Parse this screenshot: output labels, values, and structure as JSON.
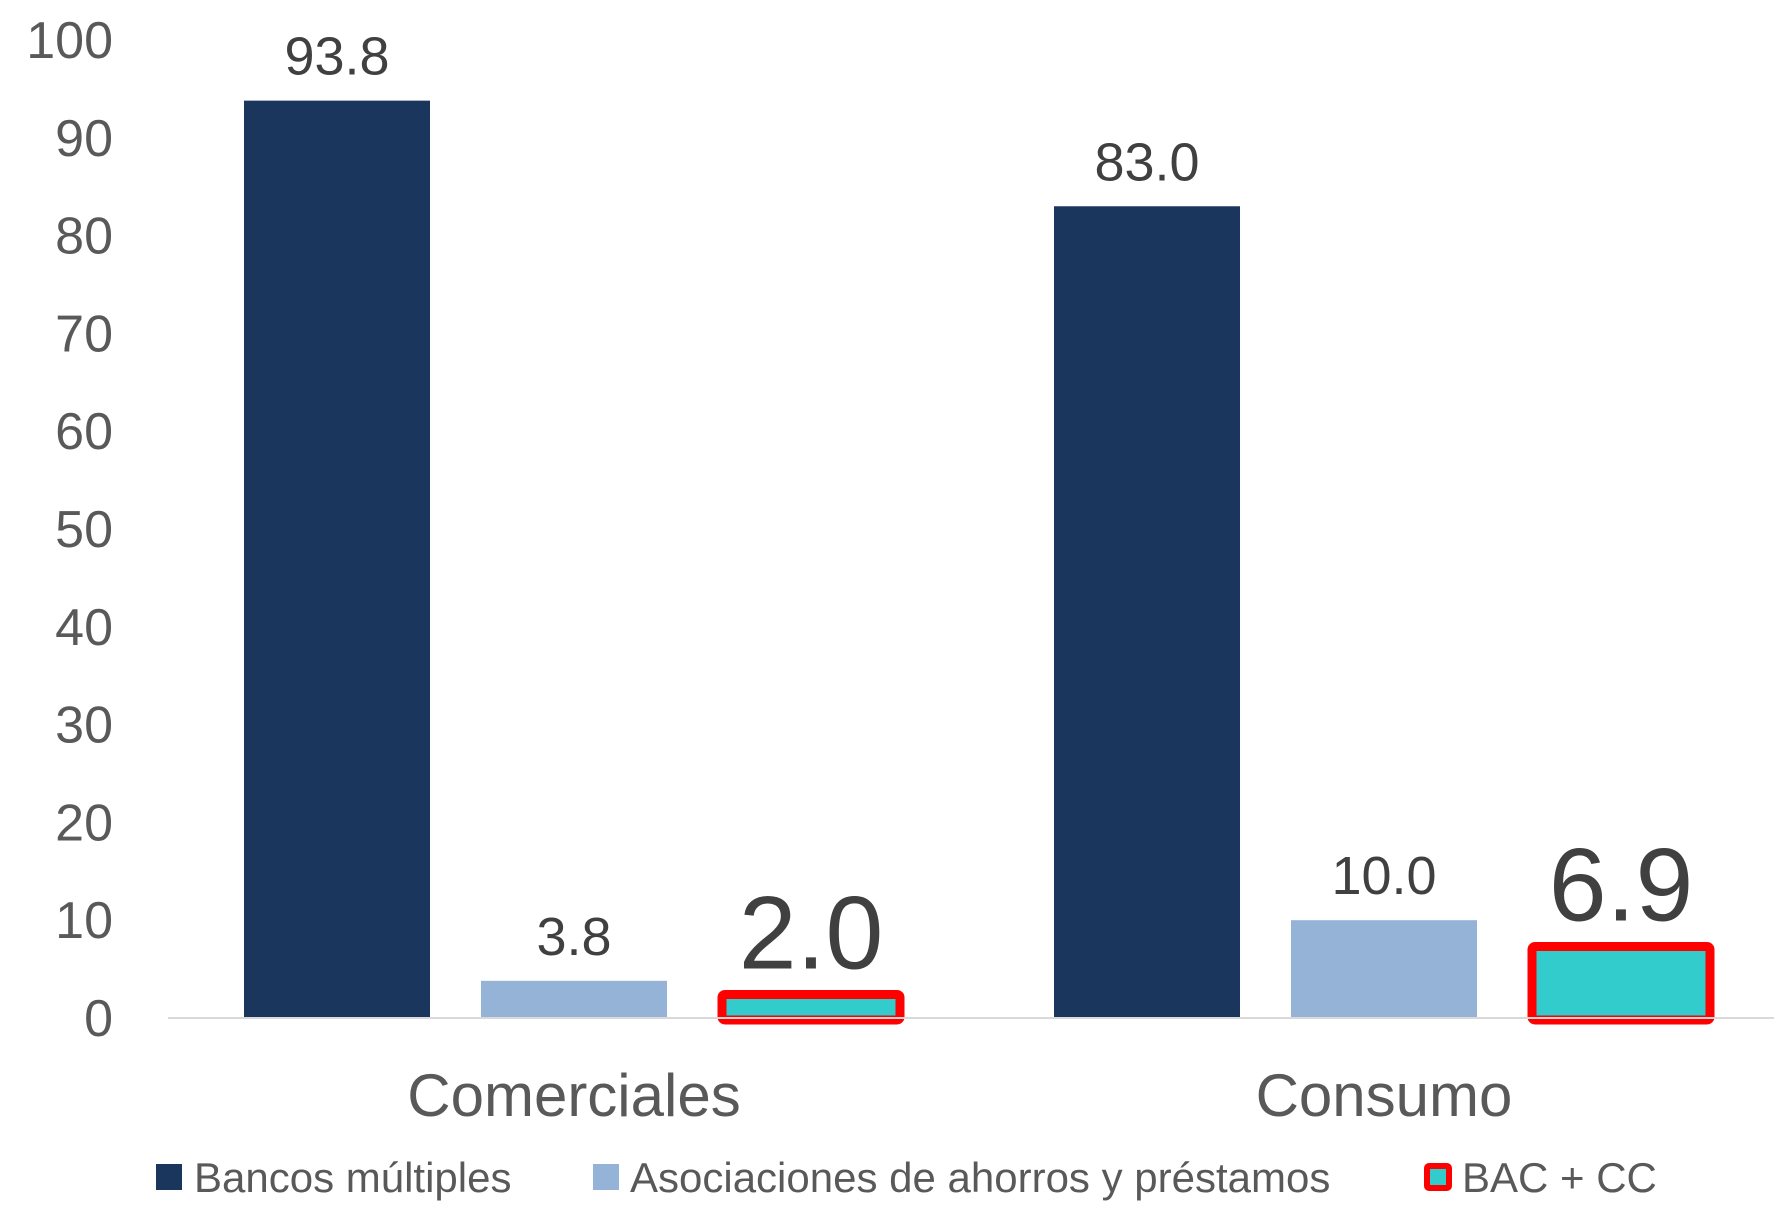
{
  "chart_data": {
    "type": "bar",
    "categories": [
      "Comerciales",
      "Consumo"
    ],
    "series": [
      {
        "name": "Bancos múltiples",
        "values": [
          93.8,
          83.0
        ],
        "labels": [
          "93.8",
          "83.0"
        ],
        "color": "#1b365d"
      },
      {
        "name": "Asociaciones de ahorros y préstamos",
        "values": [
          3.8,
          10.0
        ],
        "labels": [
          "3.8",
          "10.0"
        ],
        "color": "#95b3d7"
      },
      {
        "name": "BAC + CC",
        "values": [
          2.0,
          6.9
        ],
        "labels": [
          "2.0",
          "6.9"
        ],
        "color": "#33cccc",
        "outline_color": "#ff0000",
        "highlighted": true
      }
    ],
    "y_ticks": [
      "0",
      "10",
      "20",
      "30",
      "40",
      "50",
      "60",
      "70",
      "80",
      "90",
      "100"
    ],
    "ylim": [
      0,
      100
    ],
    "title": "",
    "xlabel": "",
    "ylabel": "",
    "grid": false,
    "legend_position": "bottom"
  }
}
